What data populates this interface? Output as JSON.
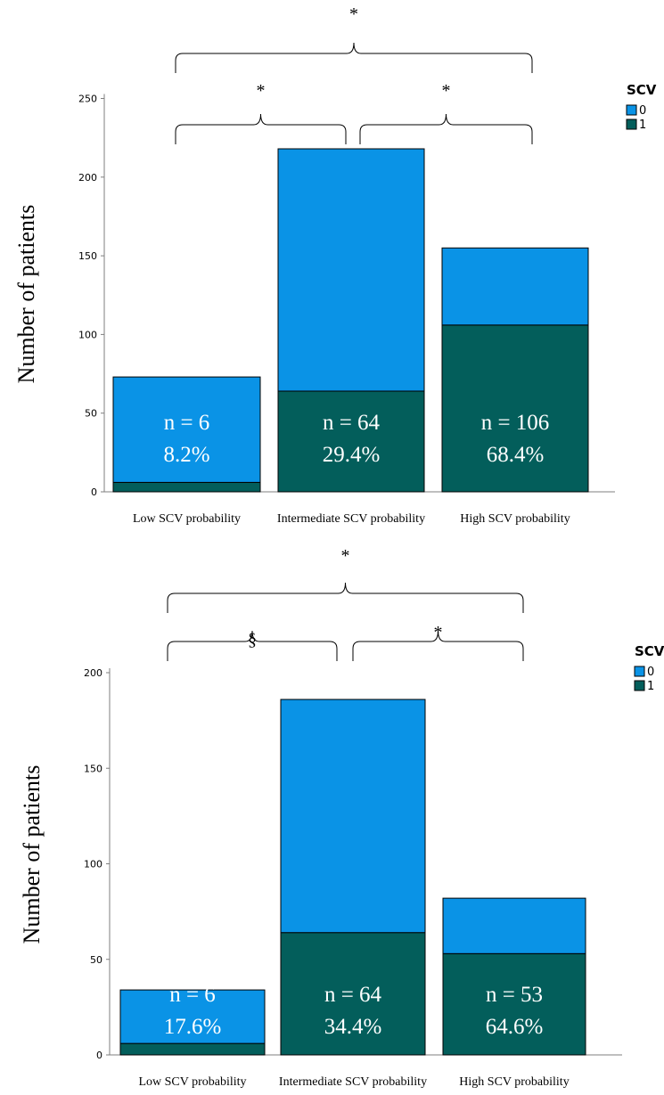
{
  "colors": {
    "scv0": "#0a93e6",
    "scv1": "#035e5b",
    "axis": "#7f7f7f",
    "label": "#ffffff",
    "bracket": "#000000"
  },
  "chart_data": [
    {
      "type": "bar",
      "stacked": true,
      "categories": [
        "Low SCV probability",
        "Intermediate SCV probability",
        "High SCV probability"
      ],
      "series": [
        {
          "name": "1",
          "values": [
            6,
            64,
            106
          ]
        },
        {
          "name": "0",
          "values": [
            67,
            154,
            49
          ]
        }
      ],
      "totals": [
        73,
        218,
        155
      ],
      "bar_labels": [
        {
          "n": "n = 6",
          "pct": "8.2%"
        },
        {
          "n": "n = 64",
          "pct": "29.4%"
        },
        {
          "n": "n = 106",
          "pct": "68.4%"
        }
      ],
      "ylabel": "Number of patients",
      "yticks": [
        0,
        50,
        100,
        150,
        200,
        250
      ],
      "ylim": [
        0,
        250
      ],
      "legend": {
        "title": "SCV",
        "entries": [
          "0",
          "1"
        ],
        "placement": "top-right"
      },
      "significance": [
        {
          "from": 0,
          "to": 1,
          "symbol": "*"
        },
        {
          "from": 1,
          "to": 2,
          "symbol": "*"
        },
        {
          "from": 0,
          "to": 2,
          "symbol": "*"
        }
      ]
    },
    {
      "type": "bar",
      "stacked": true,
      "categories": [
        "Low SCV probability",
        "Intermediate SCV probability",
        "High SCV probability"
      ],
      "series": [
        {
          "name": "1",
          "values": [
            6,
            64,
            53
          ]
        },
        {
          "name": "0",
          "values": [
            28,
            122,
            29
          ]
        }
      ],
      "totals": [
        34,
        186,
        82
      ],
      "bar_labels": [
        {
          "n": "n = 6",
          "pct": "17.6%"
        },
        {
          "n": "n = 64",
          "pct": "34.4%"
        },
        {
          "n": "n = 53",
          "pct": "64.6%"
        }
      ],
      "ylabel": "Number of patients",
      "yticks": [
        0,
        50,
        100,
        150,
        200
      ],
      "ylim": [
        0,
        200
      ],
      "legend": {
        "title": "SCV",
        "entries": [
          "0",
          "1"
        ],
        "placement": "top-right"
      },
      "significance": [
        {
          "from": 0,
          "to": 1,
          "symbol": "§"
        },
        {
          "from": 1,
          "to": 2,
          "symbol": "*"
        },
        {
          "from": 0,
          "to": 2,
          "symbol": "*"
        }
      ]
    }
  ]
}
